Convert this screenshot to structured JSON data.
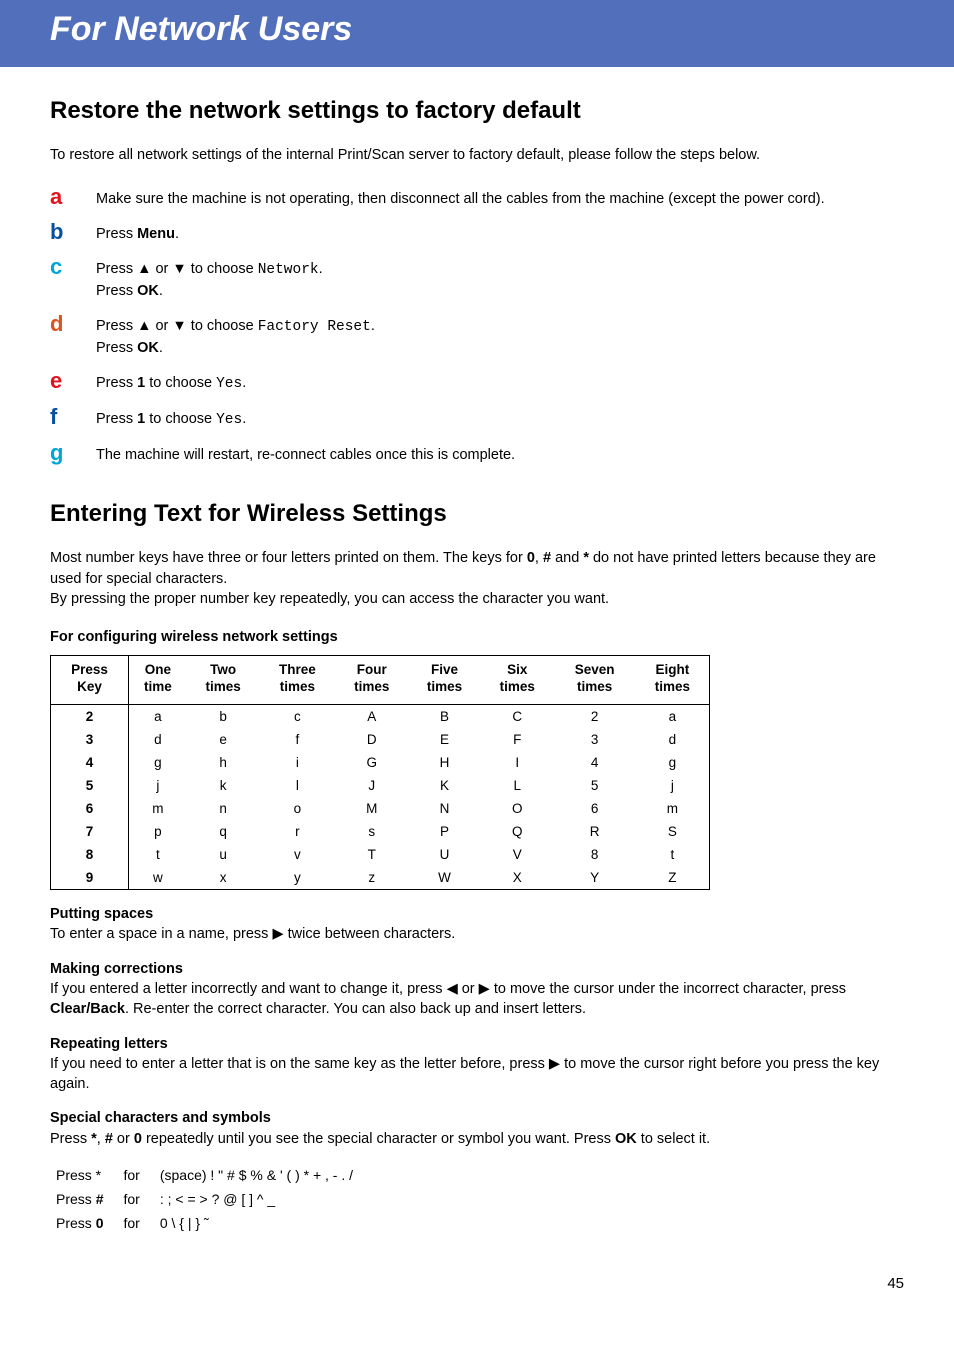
{
  "banner": "For Network Users",
  "section1": {
    "title": "Restore the network settings to factory default",
    "intro": "To restore all network settings of the internal Print/Scan server to factory default, please follow the steps below.",
    "steps": {
      "a": {
        "letter": "a",
        "color": "#e0131e",
        "html": "Make sure the machine is not operating, then disconnect all the cables from the machine (except the power cord)."
      },
      "b": {
        "letter": "b",
        "color": "#0a50a1",
        "html": "Press <b>Menu</b>."
      },
      "c": {
        "letter": "c",
        "color": "#00a6d6",
        "html": "Press <span class='tri'>▲</span> or <span class='tri'>▼</span> to choose <span class='mono'>Network</span>.<br>Press <b>OK</b>."
      },
      "d": {
        "letter": "d",
        "color": "#d9541e",
        "html": "Press <span class='tri'>▲</span> or <span class='tri'>▼</span> to choose <span class='mono'>Factory Reset</span>.<br>Press <b>OK</b>."
      },
      "e": {
        "letter": "e",
        "color": "#e0131e",
        "html": "Press <b>1</b>  to choose <span class='mono'>Yes</span>."
      },
      "f": {
        "letter": "f",
        "color": "#0a50a1",
        "html": "Press <b>1</b>  to choose <span class='mono'>Yes</span>."
      },
      "g": {
        "letter": "g",
        "color": "#00a6d6",
        "html": "The machine will restart, re-connect cables once this is complete."
      }
    }
  },
  "section2": {
    "title": "Entering Text for Wireless Settings",
    "intro": "Most number keys have three or four letters printed on them. The keys for <b>0</b>, <b>#</b> and <b>*</b> do not have printed letters because they are used for special characters.<br>By pressing the proper number key repeatedly, you can access the character you want.",
    "table_caption": "For configuring wireless network settings",
    "columns": [
      "Press<br>Key",
      "One<br>time",
      "Two<br>times",
      "Three<br>times",
      "Four<br>times",
      "Five<br>times",
      "Six<br>times",
      "Seven<br>times",
      "Eight<br>times"
    ],
    "rows": [
      [
        "2",
        "a",
        "b",
        "c",
        "A",
        "B",
        "C",
        "2",
        "a"
      ],
      [
        "3",
        "d",
        "e",
        "f",
        "D",
        "E",
        "F",
        "3",
        "d"
      ],
      [
        "4",
        "g",
        "h",
        "i",
        "G",
        "H",
        "I",
        "4",
        "g"
      ],
      [
        "5",
        "j",
        "k",
        "l",
        "J",
        "K",
        "L",
        "5",
        "j"
      ],
      [
        "6",
        "m",
        "n",
        "o",
        "M",
        "N",
        "O",
        "6",
        "m"
      ],
      [
        "7",
        "p",
        "q",
        "r",
        "s",
        "P",
        "Q",
        "R",
        "S"
      ],
      [
        "8",
        "t",
        "u",
        "v",
        "T",
        "U",
        "V",
        "8",
        "t"
      ],
      [
        "9",
        "w",
        "x",
        "y",
        "z",
        "W",
        "X",
        "Y",
        "Z"
      ]
    ],
    "paras": {
      "spaces": {
        "h": "Putting spaces",
        "t": "To enter a space in a name, press <span class='tri'>▶</span> twice between characters."
      },
      "corrections": {
        "h": "Making corrections",
        "t": "If you entered a letter incorrectly and want to change it, press <span class='tri'>◀</span> or <span class='tri'>▶</span> to move the cursor under the incorrect character, press <b>Clear/Back</b>. Re-enter the correct character. You can also back up and insert letters."
      },
      "repeating": {
        "h": "Repeating letters",
        "t": "If you need to enter a letter that is on the same key as the letter before, press <span class='tri'>▶</span> to move the cursor right before you press the key again."
      },
      "special": {
        "h": "Special characters and symbols",
        "t": "Press <b>*</b>, <b>#</b> or <b>0</b> repeatedly until you see the special character or symbol you want. Press <b>OK</b> to select it."
      }
    },
    "special_rows": [
      {
        "k": "Press *",
        "f": "for",
        "c": "(space) ! \" # $ % & ' ( ) * + , - . /"
      },
      {
        "k": "Press <b>#</b>",
        "f": "for",
        "c": ": ; < = > ? @ [ ] ^ _"
      },
      {
        "k": "Press <b>0</b>",
        "f": "for",
        "c": "0 \\ { | } ˜"
      }
    ]
  },
  "page_number": "45"
}
